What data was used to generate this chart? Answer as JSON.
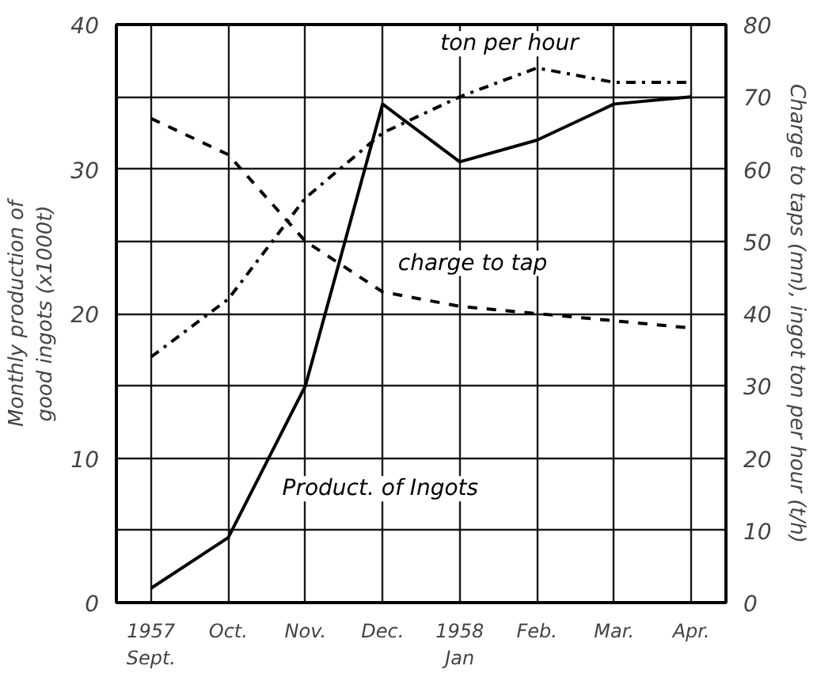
{
  "chart_data": {
    "type": "line",
    "categories": [
      "1957\nSept.",
      "Oct.",
      "Nov.",
      "Dec.",
      "1958\nJan",
      "Feb.",
      "Mar.",
      "Apr."
    ],
    "ylabel": "Monthly production of\ngood ingots (x1000t)",
    "y2label": "Charge to taps (mn), ingot ton per hour (t/h)",
    "ylim": [
      0,
      40
    ],
    "yticks": [
      0,
      {
        "value": 5,
        "label": null
      },
      10,
      {
        "value": 15,
        "label": null
      },
      20,
      {
        "value": 25,
        "label": null
      },
      30,
      {
        "value": 35,
        "label": null
      },
      40
    ],
    "y2lim": [
      0,
      80
    ],
    "y2ticks": [
      0,
      10,
      20,
      30,
      40,
      50,
      60,
      70,
      80
    ],
    "grid": true,
    "marker": "none",
    "series": [
      {
        "name": "Product. of Ingots",
        "color": "#000000",
        "line_style": "solid",
        "values": [
          1,
          4.5,
          15,
          34.5,
          30.5,
          32,
          34.5,
          35
        ]
      },
      {
        "name": "ton per hour",
        "color": "#000000",
        "line_style": "dashdot",
        "axis": "y2",
        "values": [
          34,
          42,
          56,
          65,
          70,
          74,
          72,
          72
        ]
      },
      {
        "name": "charge to tap",
        "color": "#000000",
        "line_style": "dashed",
        "axis": "y2",
        "values": [
          67,
          62,
          50,
          43,
          41,
          40,
          39,
          38
        ]
      }
    ]
  }
}
